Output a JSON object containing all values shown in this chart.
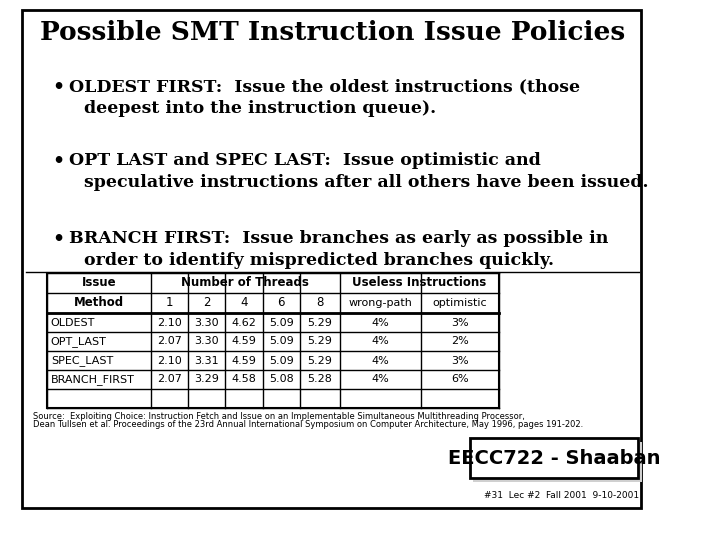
{
  "title": "Possible SMT Instruction Issue Policies",
  "bullet1_line1": "OLDEST FIRST:  Issue the oldest instructions (those",
  "bullet1_line2": "deepest into the instruction queue).",
  "bullet2_line1": "OPT LAST and SPEC LAST:  Issue optimistic and",
  "bullet2_line2": "speculative instructions after all others have been issued.",
  "bullet3_line1": "BRANCH FIRST:  Issue branches as early as possible in",
  "bullet3_line2": "order to identify mispredicted branches quickly.",
  "table_header1a": "Issue",
  "table_header1b": "Method",
  "table_threads_label": "Number of Threads",
  "table_useless_label": "Useless Instructions",
  "table_thread_cols": [
    "1",
    "2",
    "4",
    "6",
    "8"
  ],
  "table_useless_cols": [
    "wrong-path",
    "optimistic"
  ],
  "table_rows": [
    [
      "OLDEST",
      "2.10",
      "3.30",
      "4.62",
      "5.09",
      "5.29",
      "4%",
      "3%"
    ],
    [
      "OPT_LAST",
      "2.07",
      "3.30",
      "4.59",
      "5.09",
      "5.29",
      "4%",
      "2%"
    ],
    [
      "SPEC_LAST",
      "2.10",
      "3.31",
      "4.59",
      "5.09",
      "5.29",
      "4%",
      "3%"
    ],
    [
      "BRANCH_FIRST",
      "2.07",
      "3.29",
      "4.58",
      "5.08",
      "5.28",
      "4%",
      "6%"
    ]
  ],
  "source1": "Source:  Exploiting Choice: Instruction Fetch and Issue on an Implementable Simultaneous Multithreading Processor,",
  "source2": "Dean Tullsen et al. Proceedings of the 23rd Annual International Symposium on Computer Architecture, May 1996, pages 191-202.",
  "footer_text": "EECC722 - Shaaban",
  "slide_num": "#31  Lec #2  Fall 2001  9-10-2001",
  "bg": "#ffffff",
  "black": "#000000",
  "gray_footer_bg": "#d0d0d0"
}
